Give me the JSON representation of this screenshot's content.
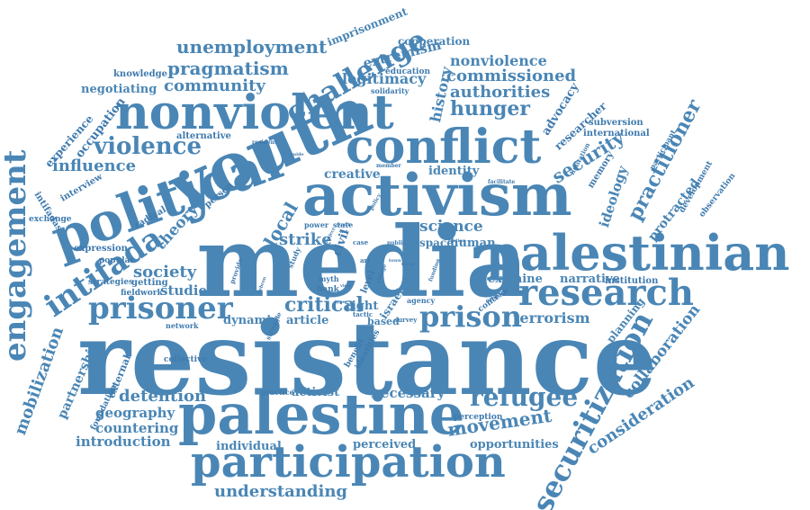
{
  "colors": {
    "text": "#4a86b5",
    "text_alt": "#3f7aae",
    "background": "#ffffff"
  },
  "words": {
    "resistance": "resistance",
    "media": "media",
    "youth": "youth",
    "activism": "activism",
    "palestinian": "palestinian",
    "political": "political",
    "nonviolent": "nonviolent",
    "conflict": "conflict",
    "palestine": "palestine",
    "participation": "participation",
    "research": "research",
    "securitization": "securitization",
    "engagement": "engagement",
    "intifada": "intifada",
    "prisoner": "prisoner",
    "prison": "prison",
    "challenge": "challenge",
    "unemployment": "unemployment",
    "pragmatism": "pragmatism",
    "community": "community",
    "negotiating": "negotiating",
    "violence": "violence",
    "influence": "influence",
    "hunger": "hunger",
    "authorities": "authorities",
    "commissioned": "commissioned",
    "nonviolence": "nonviolence",
    "legitimacy": "legitimacy",
    "extremism": "extremism",
    "history": "history",
    "cooperation": "cooperation",
    "imprisonment": "imprisonment",
    "security": "security",
    "practitioner": "practitioner",
    "mobilization": "mobilization",
    "partnership": "partnership",
    "refugee": "refugee",
    "movement": "movement",
    "detention": "detention",
    "geography": "geography",
    "countering": "countering",
    "introduction": "introduction",
    "understanding": "understanding",
    "collaboration": "collaboration",
    "consideration": "consideration",
    "terrorism": "terrorism",
    "critical": "critical",
    "society": "society",
    "studies": "studies",
    "theory": "theory",
    "local": "local",
    "strike": "strike",
    "science": "science",
    "creative": "creative",
    "identity": "identity",
    "ideology": "ideology",
    "protracted": "protracted",
    "necessary": "necessary",
    "activist": "activist",
    "perceived": "perceived",
    "individual": "individual",
    "opportunities": "opportunities",
    "examine": "examine",
    "narrative": "narrative",
    "human": "human",
    "space": "space",
    "article": "article",
    "dynamic": "dynamic",
    "right": "right",
    "israel": "israel",
    "based": "based",
    "planning": "planning",
    "experience": "experience",
    "occupation": "occupation",
    "knowledge": "knowledge",
    "alternative": "alternative",
    "interview": "interview",
    "intifadas": "intifadas",
    "exchange": "exchange",
    "expression": "expression",
    "radical": "radical",
    "person": "person",
    "popular": "popular",
    "getting": "getting",
    "strategies": "strategies",
    "fieldwork": "fieldwork",
    "network": "network",
    "collective": "collective",
    "external": "external",
    "foundation": "foundation",
    "practice": "practice",
    "perception": "perception",
    "education": "education",
    "solidarity": "solidarity",
    "researcher": "researcher",
    "advocacy": "advocacy",
    "subversion": "subversion",
    "international": "international",
    "memory": "memory",
    "development": "development",
    "observation": "observation",
    "participant": "participant",
    "limitation": "limitation",
    "institution": "institution",
    "context": "context",
    "engage": "engage",
    "agency": "agency",
    "survey": "survey",
    "tactic": "tactic",
    "benefit": "benefit",
    "identities": "identities",
    "myth": "myth",
    "bank": "bank",
    "level": "level",
    "village": "village",
    "public": "public",
    "faction": "faction",
    "funding": "funding",
    "civil": "civil",
    "case": "case",
    "power": "power",
    "state": "state",
    "policy": "policy",
    "facilitate": "facilitate",
    "member": "member",
    "resident": "resident",
    "guide": "guide",
    "project": "project",
    "study": "study",
    "provide": "provide",
    "hebron": "hebron",
    "struggle": "struggle",
    "art": "art",
    "view": "view",
    "town": "town",
    "type": "type",
    "focus": "focus",
    "youth_small": "youth",
    "act": "act"
  }
}
